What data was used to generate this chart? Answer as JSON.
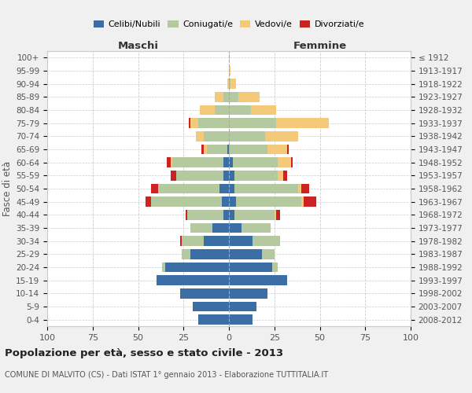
{
  "age_groups": [
    "0-4",
    "5-9",
    "10-14",
    "15-19",
    "20-24",
    "25-29",
    "30-34",
    "35-39",
    "40-44",
    "45-49",
    "50-54",
    "55-59",
    "60-64",
    "65-69",
    "70-74",
    "75-79",
    "80-84",
    "85-89",
    "90-94",
    "95-99",
    "100+"
  ],
  "birth_years": [
    "2008-2012",
    "2003-2007",
    "1998-2002",
    "1993-1997",
    "1988-1992",
    "1983-1987",
    "1978-1982",
    "1973-1977",
    "1968-1972",
    "1963-1967",
    "1958-1962",
    "1953-1957",
    "1948-1952",
    "1943-1947",
    "1938-1942",
    "1933-1937",
    "1928-1932",
    "1923-1927",
    "1918-1922",
    "1913-1917",
    "≤ 1912"
  ],
  "colors": {
    "celibi": "#3a6ea5",
    "coniugati": "#b5c9a0",
    "vedovi": "#f5c97a",
    "divorziati": "#cc2222"
  },
  "maschi": {
    "celibi": [
      17,
      20,
      27,
      40,
      35,
      21,
      14,
      9,
      3,
      4,
      5,
      3,
      3,
      1,
      0,
      0,
      0,
      0,
      0,
      0,
      0
    ],
    "coniugati": [
      0,
      0,
      0,
      0,
      2,
      5,
      12,
      12,
      20,
      39,
      34,
      26,
      28,
      11,
      14,
      17,
      8,
      3,
      0,
      0,
      0
    ],
    "vedovi": [
      0,
      0,
      0,
      0,
      0,
      0,
      0,
      0,
      0,
      0,
      0,
      0,
      1,
      2,
      4,
      4,
      8,
      5,
      1,
      0,
      0
    ],
    "divorziati": [
      0,
      0,
      0,
      0,
      0,
      0,
      1,
      0,
      1,
      3,
      4,
      3,
      2,
      1,
      0,
      1,
      0,
      0,
      0,
      0,
      0
    ]
  },
  "femmine": {
    "celibi": [
      13,
      15,
      21,
      32,
      24,
      18,
      13,
      7,
      3,
      4,
      3,
      3,
      2,
      0,
      0,
      0,
      0,
      0,
      0,
      0,
      0
    ],
    "coniugati": [
      0,
      0,
      0,
      0,
      3,
      7,
      15,
      16,
      22,
      36,
      35,
      24,
      25,
      21,
      20,
      26,
      12,
      5,
      1,
      0,
      0
    ],
    "vedovi": [
      0,
      0,
      0,
      0,
      0,
      0,
      0,
      0,
      1,
      1,
      2,
      3,
      7,
      11,
      18,
      29,
      14,
      12,
      3,
      1,
      0
    ],
    "divorziati": [
      0,
      0,
      0,
      0,
      0,
      0,
      0,
      0,
      2,
      7,
      4,
      2,
      1,
      1,
      0,
      0,
      0,
      0,
      0,
      0,
      0
    ]
  },
  "title": "Popolazione per età, sesso e stato civile - 2013",
  "subtitle": "COMUNE DI MALVITO (CS) - Dati ISTAT 1° gennaio 2013 - Elaborazione TUTTITALIA.IT",
  "maschi_label": "Maschi",
  "femmine_label": "Femmine",
  "ylabel_left": "Fasce di età",
  "xlim": 100,
  "legend_labels": [
    "Celibi/Nubili",
    "Coniugati/e",
    "Vedovi/e",
    "Divorziati/e"
  ],
  "bg_color": "#f0f0f0",
  "plot_bg_color": "#ffffff"
}
